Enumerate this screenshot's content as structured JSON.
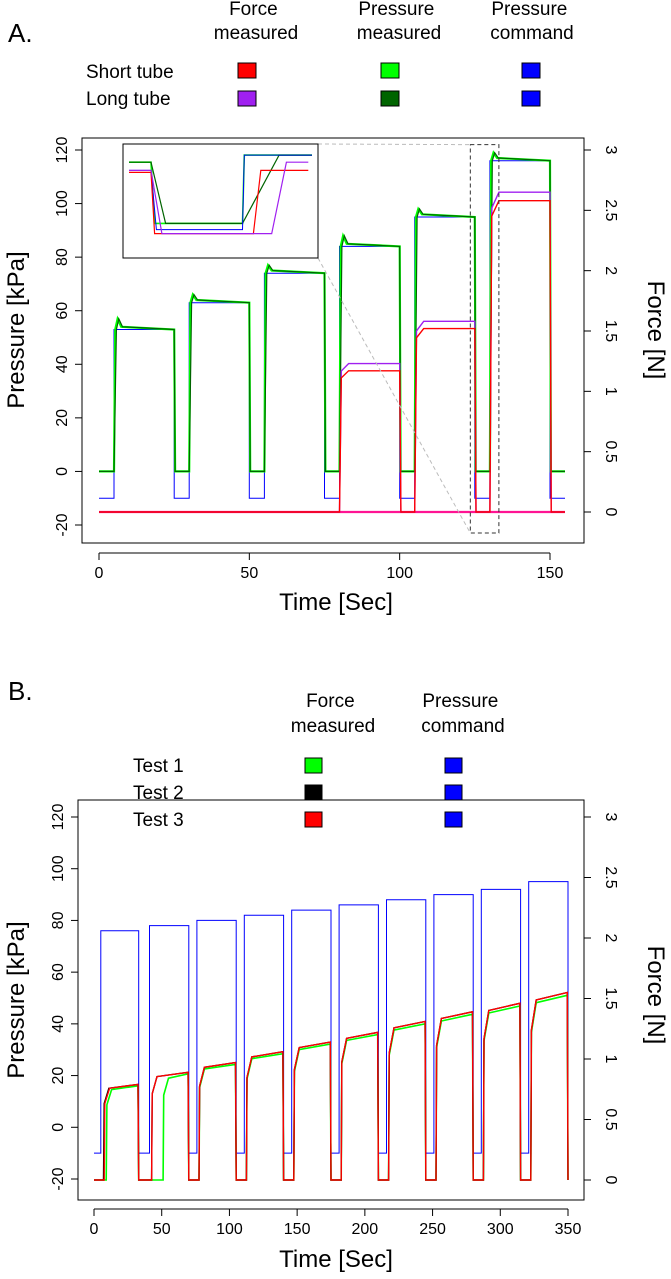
{
  "colors": {
    "short_force": "#ff0000",
    "long_force": "#a020f0",
    "short_pressure": "#00ff00",
    "long_pressure": "#006400",
    "command": "#0000ff",
    "test1": "#00ff00",
    "test2": "#000000",
    "test3": "#ff0000",
    "pink_force": "#ff1493"
  },
  "chart_data": [
    {
      "panel_label": "A.",
      "type": "line",
      "xlabel": "Time [Sec]",
      "ylabel": "Pressure [kPa]",
      "y2label": "Force [N]",
      "xlim": [
        0,
        155
      ],
      "ylim": [
        -20,
        120
      ],
      "y2lim": [
        0,
        3
      ],
      "x_ticks": [
        "0",
        "50",
        "100",
        "150"
      ],
      "y_ticks": [
        "-20",
        "0",
        "20",
        "40",
        "60",
        "80",
        "100",
        "120"
      ],
      "y2_ticks": [
        "0",
        "0.5",
        "1",
        "1.5",
        "2",
        "2.5",
        "3"
      ],
      "legend_columns": [
        "Force\nmeasured",
        "Pressure\nmeasured",
        "Pressure\ncommand"
      ],
      "legend_rows": [
        {
          "label": "Short tube",
          "colors": [
            "#ff0000",
            "#00ff00",
            "#0000ff"
          ]
        },
        {
          "label": "Long tube",
          "colors": [
            "#a020f0",
            "#006400",
            "#0000ff"
          ]
        }
      ],
      "steps": [
        {
          "start": 5,
          "end": 25,
          "pressure": 53,
          "peak": 57,
          "force": null
        },
        {
          "start": 30,
          "end": 50,
          "pressure": 63,
          "peak": 66,
          "force": null
        },
        {
          "start": 55,
          "end": 75,
          "pressure": 74,
          "peak": 77,
          "force": null
        },
        {
          "start": 80,
          "end": 100,
          "pressure": 84,
          "peak": 88,
          "force_short": 1.17,
          "force_long": 1.23
        },
        {
          "start": 105,
          "end": 125,
          "pressure": 95,
          "peak": 98,
          "force_short": 1.52,
          "force_long": 1.58
        },
        {
          "start": 130,
          "end": 150,
          "pressure": 116,
          "peak": 119,
          "force_short": 2.58,
          "force_long": 2.65
        }
      ],
      "baseline_pressure": 0,
      "baseline_command": -10,
      "baseline_force": 0
    },
    {
      "panel_label": "B.",
      "type": "line",
      "xlabel": "Time [Sec]",
      "ylabel": "Pressure [kPa]",
      "y2label": "Force [N]",
      "xlim": [
        0,
        350
      ],
      "ylim": [
        -20,
        120
      ],
      "y2lim": [
        0,
        3
      ],
      "x_ticks": [
        "0",
        "50",
        "100",
        "150",
        "200",
        "250",
        "300",
        "350"
      ],
      "y_ticks": [
        "-20",
        "0",
        "20",
        "40",
        "60",
        "80",
        "100",
        "120"
      ],
      "y2_ticks": [
        "0",
        "0.5",
        "1",
        "1.5",
        "2",
        "2.5",
        "3"
      ],
      "legend_columns": [
        "Force\nmeasured",
        "Pressure\ncommand"
      ],
      "legend_rows": [
        {
          "label": "Test 1",
          "colors": [
            "#00ff00",
            "#0000ff"
          ]
        },
        {
          "label": "Test 2",
          "colors": [
            "#000000",
            "#0000ff"
          ]
        },
        {
          "label": "Test 3",
          "colors": [
            "#ff0000",
            "#0000ff"
          ]
        }
      ],
      "steps": [
        {
          "start": 5,
          "end": 33,
          "command": 76,
          "force": 0.79
        },
        {
          "start": 41,
          "end": 70,
          "command": 78,
          "force": 0.89
        },
        {
          "start": 76,
          "end": 105,
          "command": 80,
          "force": 0.97
        },
        {
          "start": 111,
          "end": 140,
          "command": 82,
          "force": 1.06
        },
        {
          "start": 146,
          "end": 175,
          "command": 84,
          "force": 1.14
        },
        {
          "start": 181,
          "end": 210,
          "command": 86,
          "force": 1.22
        },
        {
          "start": 216,
          "end": 245,
          "command": 88,
          "force": 1.31
        },
        {
          "start": 251,
          "end": 280,
          "command": 90,
          "force": 1.39
        },
        {
          "start": 286,
          "end": 315,
          "command": 92,
          "force": 1.46
        },
        {
          "start": 321,
          "end": 350,
          "command": 95,
          "force": 1.55
        }
      ],
      "baseline_command": -10,
      "baseline_force": 0
    }
  ]
}
